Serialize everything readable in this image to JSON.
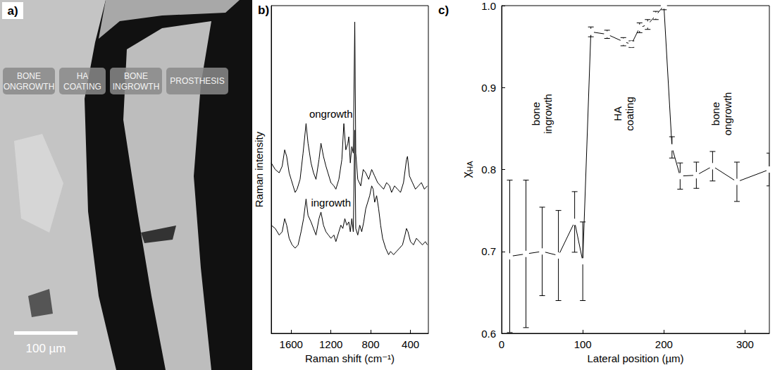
{
  "panel_a": {
    "type": "image",
    "letter": "a)",
    "regions": [
      "BONE ONGROWTH",
      "HA COATING",
      "BONE INGROWTH",
      "PROSTHESIS"
    ],
    "scale_bar": "100 µm"
  },
  "chart_data": [
    {
      "letter": "b)",
      "type": "line",
      "x_label": "Raman shift (cm⁻¹)",
      "y_label": "Raman intensity",
      "xlim": [
        1800,
        220
      ],
      "xticks": [
        1600,
        1200,
        800,
        400
      ],
      "ylim": [
        0,
        100
      ],
      "tick_labels": "x",
      "series": [
        {
          "name": "ongrowth",
          "color": "#000000",
          "x": [
            1800,
            1760,
            1720,
            1690,
            1665,
            1645,
            1620,
            1600,
            1580,
            1560,
            1540,
            1510,
            1480,
            1450,
            1430,
            1400,
            1375,
            1350,
            1320,
            1300,
            1275,
            1250,
            1230,
            1200,
            1170,
            1150,
            1120,
            1090,
            1070,
            1050,
            1030,
            1020,
            1005,
            990,
            975,
            960,
            950,
            930,
            900,
            875,
            850,
            820,
            790,
            760,
            730,
            700,
            670,
            640,
            610,
            590,
            560,
            530,
            500,
            470,
            440,
            430,
            410,
            380,
            350,
            320,
            290,
            260,
            230
          ],
          "values": [
            52,
            50,
            49,
            51,
            56,
            54,
            49,
            47,
            45,
            43,
            44,
            47,
            55,
            64,
            58,
            52,
            49,
            47,
            53,
            58,
            54,
            51,
            49,
            46,
            45,
            44,
            47,
            53,
            64,
            56,
            58,
            60,
            52,
            57,
            55,
            95,
            55,
            47,
            45,
            50,
            49,
            47,
            50,
            48,
            46,
            45,
            44,
            46,
            45,
            43,
            45,
            44,
            43,
            46,
            53,
            54,
            48,
            46,
            44,
            45,
            46,
            44,
            45
          ]
        },
        {
          "name": "ingrowth",
          "color": "#000000",
          "x": [
            1800,
            1760,
            1720,
            1690,
            1665,
            1645,
            1620,
            1590,
            1560,
            1530,
            1500,
            1475,
            1450,
            1430,
            1400,
            1375,
            1350,
            1320,
            1300,
            1275,
            1250,
            1225,
            1200,
            1170,
            1150,
            1120,
            1100,
            1080,
            1060,
            1040,
            1020,
            1005,
            990,
            975,
            960,
            950,
            930,
            910,
            890,
            870,
            850,
            830,
            810,
            790,
            775,
            760,
            740,
            720,
            700,
            680,
            650,
            620,
            600,
            570,
            540,
            510,
            480,
            455,
            440,
            425,
            400,
            370,
            340,
            310,
            280,
            250,
            230
          ],
          "values": [
            33,
            32,
            30,
            31,
            35,
            33,
            29,
            27,
            26,
            27,
            31,
            35,
            41,
            36,
            34,
            32,
            30,
            35,
            37,
            33,
            31,
            30,
            29,
            30,
            28,
            31,
            33,
            32,
            35,
            33,
            34,
            31,
            35,
            31,
            62,
            32,
            30,
            33,
            31,
            34,
            38,
            40,
            42,
            45,
            44,
            40,
            42,
            38,
            33,
            29,
            26,
            24,
            25,
            24,
            25,
            26,
            27,
            30,
            32,
            31,
            28,
            27,
            29,
            28,
            27,
            28,
            27
          ]
        }
      ]
    },
    {
      "letter": "c)",
      "type": "line",
      "x_label": "Lateral position (µm)",
      "y_label": {
        "text": "χ",
        "subscript": "HA"
      },
      "xlim": [
        0,
        330
      ],
      "xticks": [
        0,
        100,
        200,
        300
      ],
      "ylim": [
        0.6,
        1
      ],
      "yticks": [
        0.6,
        0.7,
        0.8,
        0.9,
        {
          "value": 1,
          "label": "1.0"
        }
      ],
      "color": "#000000",
      "marker": "open circle",
      "x": [
        10,
        30,
        50,
        70,
        90,
        100,
        110,
        130,
        150,
        160,
        170,
        180,
        190,
        200,
        210,
        220,
        240,
        260,
        290,
        330
      ],
      "values": [
        0.694,
        0.697,
        0.7,
        0.695,
        0.736,
        0.688,
        0.968,
        0.965,
        0.956,
        0.953,
        0.973,
        0.977,
        0.988,
        1.0,
        0.827,
        0.792,
        0.793,
        0.804,
        0.785,
        0.8
      ],
      "errors": [
        0.093,
        0.09,
        0.054,
        0.055,
        0.037,
        0.048,
        0.006,
        0.005,
        0.005,
        0.004,
        0.006,
        0.006,
        0.005,
        0.005,
        0.013,
        0.016,
        0.016,
        0.018,
        0.024,
        0.02
      ],
      "annotations": [
        "bone ingrowth",
        "HA coating",
        "bone ongrowth"
      ]
    }
  ]
}
